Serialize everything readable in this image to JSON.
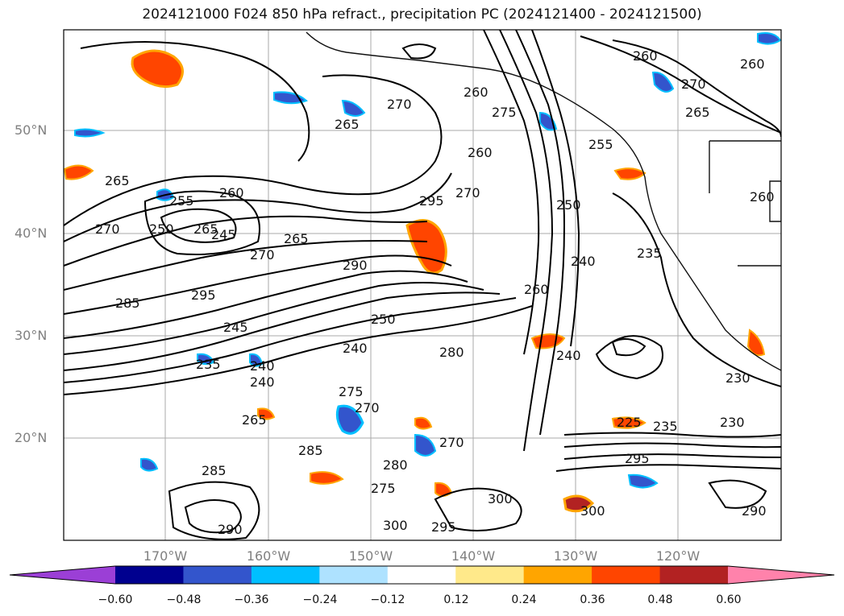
{
  "title": "2024121000 F024 850 hPa refract., precipitation PC (2024121400 - 2024121500)",
  "lat_labels": [
    "50°N",
    "40°N",
    "30°N",
    "20°N"
  ],
  "lon_labels": [
    "170°W",
    "160°W",
    "150°W",
    "140°W",
    "130°W",
    "120°W"
  ],
  "contour_labels": [
    "260",
    "260",
    "265",
    "270",
    "260",
    "270",
    "275",
    "265",
    "265",
    "260",
    "255",
    "245",
    "270",
    "250",
    "265",
    "270",
    "290",
    "285",
    "295",
    "245",
    "235",
    "240",
    "250",
    "240",
    "280",
    "260",
    "250",
    "240",
    "240",
    "235",
    "255",
    "270",
    "275",
    "265",
    "270",
    "285",
    "280",
    "275",
    "290",
    "295",
    "300",
    "300",
    "295",
    "290",
    "300",
    "295",
    "230",
    "230",
    "235",
    "225",
    "285",
    "240",
    "260",
    "265",
    "260",
    "270"
  ],
  "colorbar": {
    "ticks": [
      "−0.60",
      "−0.48",
      "−0.36",
      "−0.24",
      "−0.12",
      "0.12",
      "0.24",
      "0.36",
      "0.48",
      "0.60"
    ],
    "colors": [
      "#9b3fd6",
      "#00008f",
      "#3355cc",
      "#00bfff",
      "#aee2ff",
      "#ffffff",
      "#ffe98a",
      "#ffa500",
      "#ff4500",
      "#b22222",
      "#ff82ab"
    ]
  }
}
